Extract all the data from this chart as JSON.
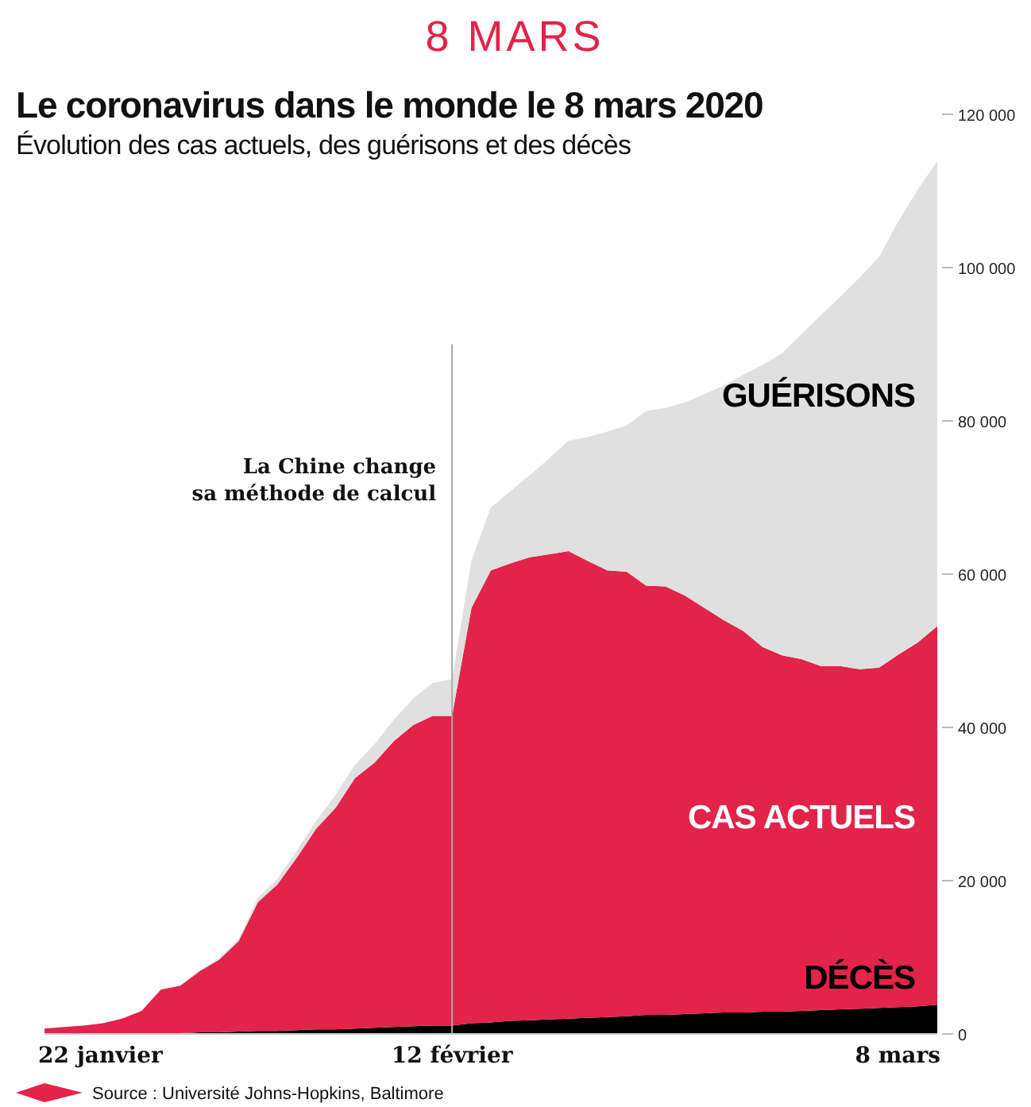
{
  "chart_data": {
    "type": "area",
    "stacked": true,
    "title": "Le coronavirus dans le monde le 8 mars 2020",
    "subtitle": "Évolution des cas actuels, des guérisons et des décès",
    "annotations": [
      "8 MARS",
      "Source : Université Johns-Hopkins, Baltimore"
    ],
    "x": [
      "2020-01-22",
      "2020-01-23",
      "2020-01-24",
      "2020-01-25",
      "2020-01-26",
      "2020-01-27",
      "2020-01-28",
      "2020-01-29",
      "2020-01-30",
      "2020-01-31",
      "2020-02-01",
      "2020-02-02",
      "2020-02-03",
      "2020-02-04",
      "2020-02-05",
      "2020-02-06",
      "2020-02-07",
      "2020-02-08",
      "2020-02-09",
      "2020-02-10",
      "2020-02-11",
      "2020-02-12",
      "2020-02-13",
      "2020-02-14",
      "2020-02-15",
      "2020-02-16",
      "2020-02-17",
      "2020-02-18",
      "2020-02-19",
      "2020-02-20",
      "2020-02-21",
      "2020-02-22",
      "2020-02-23",
      "2020-02-24",
      "2020-02-25",
      "2020-02-26",
      "2020-02-27",
      "2020-02-28",
      "2020-02-29",
      "2020-03-01",
      "2020-03-02",
      "2020-03-03",
      "2020-03-04",
      "2020-03-05",
      "2020-03-06",
      "2020-03-07",
      "2020-03-08"
    ],
    "series": [
      {
        "name": "DÉCÈS",
        "color": "#000000",
        "values": [
          0,
          0,
          0,
          0,
          100,
          100,
          100,
          100,
          200,
          200,
          300,
          400,
          400,
          500,
          600,
          600,
          700,
          800,
          900,
          1000,
          1100,
          1100,
          1400,
          1500,
          1700,
          1800,
          1900,
          2000,
          2100,
          2200,
          2300,
          2500,
          2500,
          2600,
          2700,
          2800,
          2800,
          2900,
          2900,
          3000,
          3100,
          3200,
          3300,
          3400,
          3500,
          3600,
          3800
        ]
      },
      {
        "name": "CAS ACTUELS",
        "color": "#e2234a",
        "values": [
          700,
          900,
          1100,
          1400,
          1900,
          2900,
          5700,
          6200,
          8000,
          9500,
          11800,
          16800,
          19100,
          22500,
          26200,
          28900,
          32700,
          34600,
          37300,
          39300,
          40400,
          40400,
          54200,
          59000,
          59700,
          60400,
          60700,
          61000,
          59600,
          58300,
          58000,
          56000,
          55900,
          54600,
          52900,
          51200,
          49800,
          47600,
          46500,
          45900,
          44900,
          44800,
          44300,
          44400,
          46000,
          47500,
          49400
        ]
      },
      {
        "name": "GUÉRISONS",
        "color": "#e0e0e0",
        "values": [
          0,
          0,
          0,
          0,
          0,
          0,
          100,
          100,
          100,
          200,
          300,
          600,
          700,
          900,
          1000,
          1700,
          1700,
          2400,
          2800,
          3500,
          4300,
          4800,
          6200,
          8200,
          9400,
          10700,
          12500,
          14400,
          16200,
          18100,
          19100,
          22800,
          23300,
          25200,
          27900,
          30600,
          33400,
          36800,
          39400,
          42400,
          45800,
          48200,
          51100,
          53600,
          56600,
          59100,
          60700
        ]
      }
    ],
    "xlim": [
      "2020-01-22",
      "2020-03-08"
    ],
    "xticks": [
      {
        "value": "2020-01-22",
        "label": "22 janvier"
      },
      {
        "value": "2020-02-12",
        "label": "12 février"
      },
      {
        "value": "2020-03-08",
        "label": "8 mars"
      }
    ],
    "ylim": [
      0,
      120000
    ],
    "yticks": [
      {
        "value": 0,
        "label": "0"
      },
      {
        "value": 20000,
        "label": "20 000"
      },
      {
        "value": 40000,
        "label": "40 000"
      },
      {
        "value": 60000,
        "label": "60 000"
      },
      {
        "value": 80000,
        "label": "80 000"
      },
      {
        "value": 100000,
        "label": "100 000"
      },
      {
        "value": 120000,
        "label": "120 000"
      }
    ],
    "ref_lines": [
      {
        "axis": "x",
        "value": "2020-02-12",
        "label": "La Chine change\nsa méthode de calcul",
        "color": "#aaaaaa"
      }
    ],
    "grid": false
  }
}
